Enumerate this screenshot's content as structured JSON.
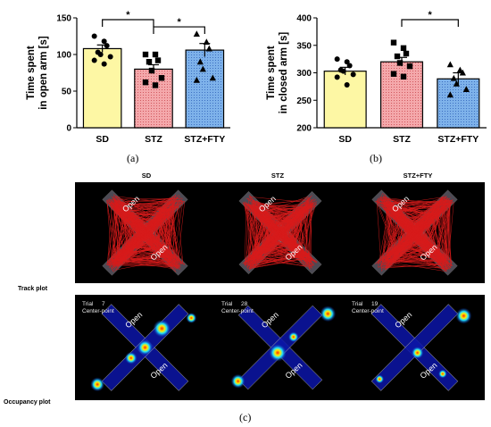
{
  "chart_data": [
    {
      "type": "bar",
      "panel_label": "(a)",
      "ylabel_line1": "Time spent",
      "ylabel_line2": "in open arm [s]",
      "categories": [
        "SD",
        "STZ",
        "STZ+FTY"
      ],
      "values": [
        108,
        80,
        106
      ],
      "errors": [
        5,
        6,
        9
      ],
      "ylim": [
        0,
        150
      ],
      "yticks": [
        "0",
        "50",
        "100",
        "150"
      ],
      "points": [
        [
          125,
          118,
          112,
          103,
          100,
          97,
          92,
          87
        ],
        [
          100,
          100,
          92,
          90,
          78,
          68,
          62,
          58
        ],
        [
          128,
          117,
          108,
          90,
          80,
          68,
          65
        ]
      ],
      "significance": [
        {
          "from": 0,
          "to": 1,
          "label": "*"
        },
        {
          "from": 1,
          "to": 2,
          "label": "*"
        }
      ],
      "bar_colors": [
        "#fdf7a4",
        "#f4a8ab",
        "#7eb2ea"
      ],
      "markers": [
        "circle",
        "square",
        "triangle"
      ]
    },
    {
      "type": "bar",
      "panel_label": "(b)",
      "ylabel_line1": "Time spent",
      "ylabel_line2": "in closed arm [s]",
      "categories": [
        "SD",
        "STZ",
        "STZ+FTY"
      ],
      "values": [
        303,
        320,
        289
      ],
      "errors": [
        7,
        8,
        11
      ],
      "ylim": [
        200,
        400
      ],
      "yticks": [
        "200",
        "250",
        "300",
        "350",
        "400"
      ],
      "points": [
        [
          325,
          320,
          313,
          305,
          303,
          297,
          292,
          278
        ],
        [
          355,
          345,
          335,
          330,
          318,
          312,
          298,
          293
        ],
        [
          315,
          305,
          300,
          290,
          280,
          270,
          260
        ]
      ],
      "significance": [
        {
          "from": 1,
          "to": 2,
          "label": "*"
        }
      ],
      "bar_colors": [
        "#fdf7a4",
        "#f4a8ab",
        "#7eb2ea"
      ],
      "markers": [
        "circle",
        "square",
        "triangle"
      ]
    }
  ],
  "figure_c": {
    "panel_label": "(c)",
    "columns": [
      "SD",
      "STZ",
      "STZ+FTY"
    ],
    "rows": [
      "Track plot",
      "Occupancy plot"
    ],
    "arm_label": "Open",
    "occupancy_trials": [
      {
        "trial_label": "Trial",
        "trial_value": "7",
        "center_label": "Center-point"
      },
      {
        "trial_label": "Trial",
        "trial_value": "28",
        "center_label": "Center-point"
      },
      {
        "trial_label": "Trial",
        "trial_value": "19",
        "center_label": "Center-point"
      }
    ],
    "colors": {
      "track": "#d71b1b",
      "arm": "#8a8899",
      "heat_low": "#0c16a8",
      "heat_high": "#ff2a00"
    }
  }
}
